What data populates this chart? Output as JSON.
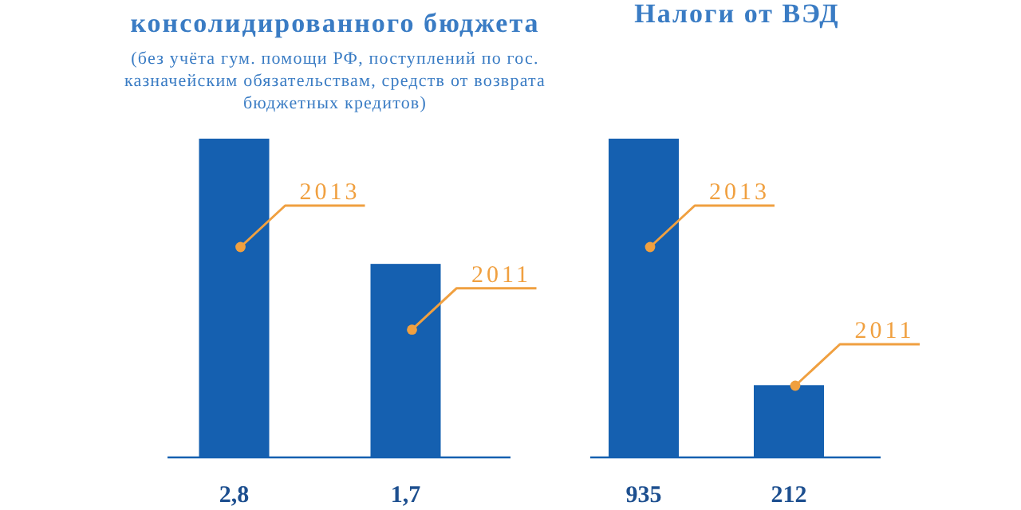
{
  "chart_data": [
    {
      "type": "bar",
      "title": "консолидированного бюджета",
      "subtitle": "(без учёта гум. помощи РФ, поступлений по гос. казначейским обязательствам, средств от возврата бюджетных кредитов)",
      "categories": [
        null,
        null
      ],
      "annotations": [
        "2013",
        "2011"
      ],
      "values": [
        2.8,
        1.7
      ],
      "value_labels": [
        "2,8",
        "1,7"
      ],
      "color": "#1560b0"
    },
    {
      "type": "bar",
      "title": "Налоги от ВЭД",
      "categories": [
        null,
        null
      ],
      "annotations": [
        "2013",
        "2011"
      ],
      "values": [
        935,
        212
      ],
      "value_labels": [
        "935",
        "212"
      ],
      "color": "#1560b0"
    }
  ]
}
